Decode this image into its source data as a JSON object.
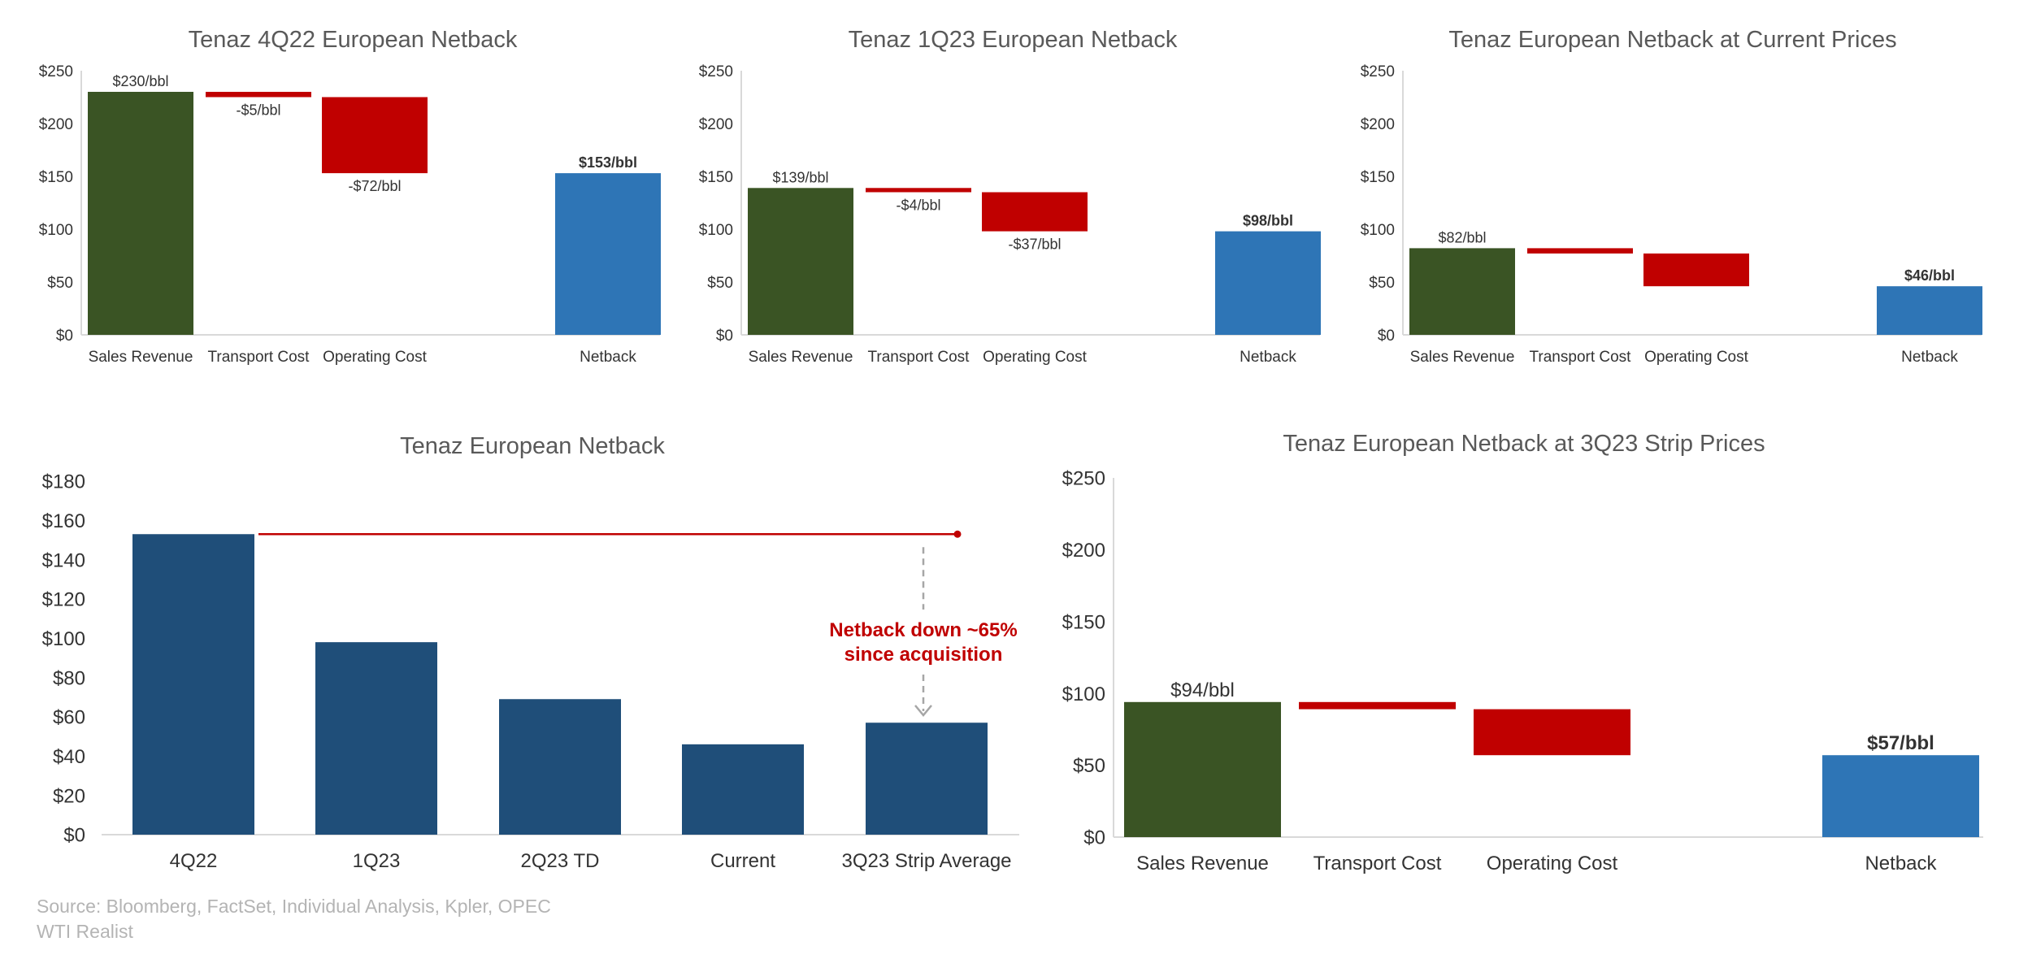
{
  "chart_data": [
    {
      "type": "waterfall",
      "title": "Tenaz 4Q22 European Netback",
      "categories": [
        "Sales Revenue",
        "Transport Cost",
        "Operating Cost",
        "",
        "Netback"
      ],
      "values": [
        230,
        -5,
        -72,
        null,
        153
      ],
      "labels": [
        "$230/bbl",
        "-$5/bbl",
        "-$72/bbl",
        "",
        "$153/bbl"
      ],
      "ylim": [
        0,
        250
      ],
      "yticks": [
        "$0",
        "$50",
        "$100",
        "$150",
        "$200",
        "$250"
      ],
      "yticks_values": [
        0,
        50,
        100,
        150,
        200,
        250
      ]
    },
    {
      "type": "waterfall",
      "title": "Tenaz 1Q23 European Netback",
      "categories": [
        "Sales Revenue",
        "Transport Cost",
        "Operating Cost",
        "",
        "Netback"
      ],
      "values": [
        139,
        -4,
        -37,
        null,
        98
      ],
      "labels": [
        "$139/bbl",
        "-$4/bbl",
        "-$37/bbl",
        "",
        "$98/bbl"
      ],
      "ylim": [
        0,
        250
      ],
      "yticks": [
        "$0",
        "$50",
        "$100",
        "$150",
        "$200",
        "$250"
      ],
      "yticks_values": [
        0,
        50,
        100,
        150,
        200,
        250
      ]
    },
    {
      "type": "waterfall",
      "title": "Tenaz European Netback at Current Prices",
      "categories": [
        "Sales Revenue",
        "Transport Cost",
        "Operating Cost",
        "",
        "Netback"
      ],
      "values": [
        82,
        -5,
        -31,
        null,
        46
      ],
      "labels": [
        "$82/bbl",
        "",
        "",
        "",
        "$46/bbl"
      ],
      "ylim": [
        0,
        250
      ],
      "yticks": [
        "$0",
        "$50",
        "$100",
        "$150",
        "$200",
        "$250"
      ],
      "yticks_values": [
        0,
        50,
        100,
        150,
        200,
        250
      ]
    },
    {
      "type": "bar",
      "title": "Tenaz European Netback",
      "categories": [
        "4Q22",
        "1Q23",
        "2Q23 TD",
        "Current",
        "3Q23 Strip Average"
      ],
      "values": [
        153,
        98,
        69,
        46,
        57
      ],
      "ylim": [
        0,
        180
      ],
      "yticks": [
        "$0",
        "$20",
        "$40",
        "$60",
        "$80",
        "$100",
        "$120",
        "$140",
        "$160",
        "$180"
      ],
      "yticks_values": [
        0,
        20,
        40,
        60,
        80,
        100,
        120,
        140,
        160,
        180
      ],
      "reference_line": 153,
      "annotation_line1": "Netback down ~65%",
      "annotation_line2": "since acquisition"
    },
    {
      "type": "waterfall",
      "title": "Tenaz European Netback at 3Q23 Strip Prices",
      "categories": [
        "Sales Revenue",
        "Transport Cost",
        "Operating Cost",
        "",
        "Netback"
      ],
      "values": [
        94,
        -5,
        -32,
        null,
        57
      ],
      "labels": [
        "$94/bbl",
        "",
        "",
        "",
        "$57/bbl"
      ],
      "ylim": [
        0,
        250
      ],
      "yticks": [
        "$0",
        "$50",
        "$100",
        "$150",
        "$200",
        "$250"
      ],
      "yticks_values": [
        0,
        50,
        100,
        150,
        200,
        250
      ]
    }
  ],
  "colors": {
    "revenue": "#3a5424",
    "cost": "#c00000",
    "netback": "#2e75b6",
    "column": "#1f4e79",
    "annotation": "#c00000",
    "axis_text": "#333333",
    "title_text": "#595959",
    "source_text": "#b4b4b4"
  },
  "source": {
    "line1": "Source: Bloomberg, FactSet, Individual Analysis, Kpler, OPEC",
    "line2": "WTI Realist"
  }
}
